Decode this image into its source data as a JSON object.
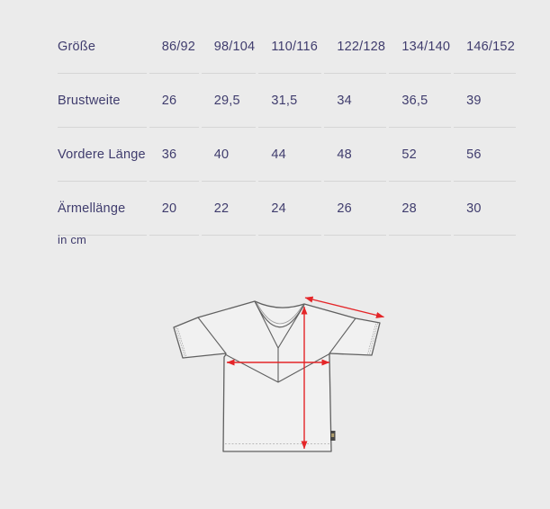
{
  "table": {
    "header": {
      "label": "Größe",
      "sizes": [
        "86/92",
        "98/104",
        "110/116",
        "122/128",
        "134/140",
        "146/152"
      ]
    },
    "rows": [
      {
        "label": "Größe",
        "values": [
          "86/92",
          "98/104",
          "110/116",
          "122/128",
          "134/140",
          "146/152"
        ]
      },
      {
        "label": "Brustweite",
        "values": [
          "26",
          "29,5",
          "31,5",
          "34",
          "36,5",
          "39"
        ]
      },
      {
        "label": "Vordere Länge",
        "values": [
          "36",
          "40",
          "44",
          "48",
          "52",
          "56"
        ]
      },
      {
        "label": "Ärmellänge",
        "values": [
          "20",
          "22",
          "24",
          "26",
          "28",
          "30"
        ]
      }
    ],
    "footnote": "in cm"
  },
  "chart_data": {
    "type": "table",
    "categories": [
      "86/92",
      "98/104",
      "110/116",
      "122/128",
      "134/140",
      "146/152"
    ],
    "series": [
      {
        "name": "Brustweite",
        "values": [
          26,
          29.5,
          31.5,
          34,
          36.5,
          39
        ]
      },
      {
        "name": "Vordere Länge",
        "values": [
          36,
          40,
          44,
          48,
          52,
          56
        ]
      },
      {
        "name": "Ärmellänge",
        "values": [
          20,
          22,
          24,
          26,
          28,
          30
        ]
      }
    ],
    "unit_note": "in cm"
  },
  "diagram": {
    "description": "t-shirt technical drawing with measurement arrows",
    "arrows": [
      "sleeve-length",
      "chest-width",
      "front-length"
    ],
    "colors": {
      "arrow_red": "#e42528",
      "outline_gray": "#606060",
      "shirt_fill": "#f1f1f1",
      "stitch_gray": "#a0a0a0",
      "background": "#ebebeb",
      "text_navy": "#3f3c6d",
      "divider": "#d5d5d5"
    }
  }
}
